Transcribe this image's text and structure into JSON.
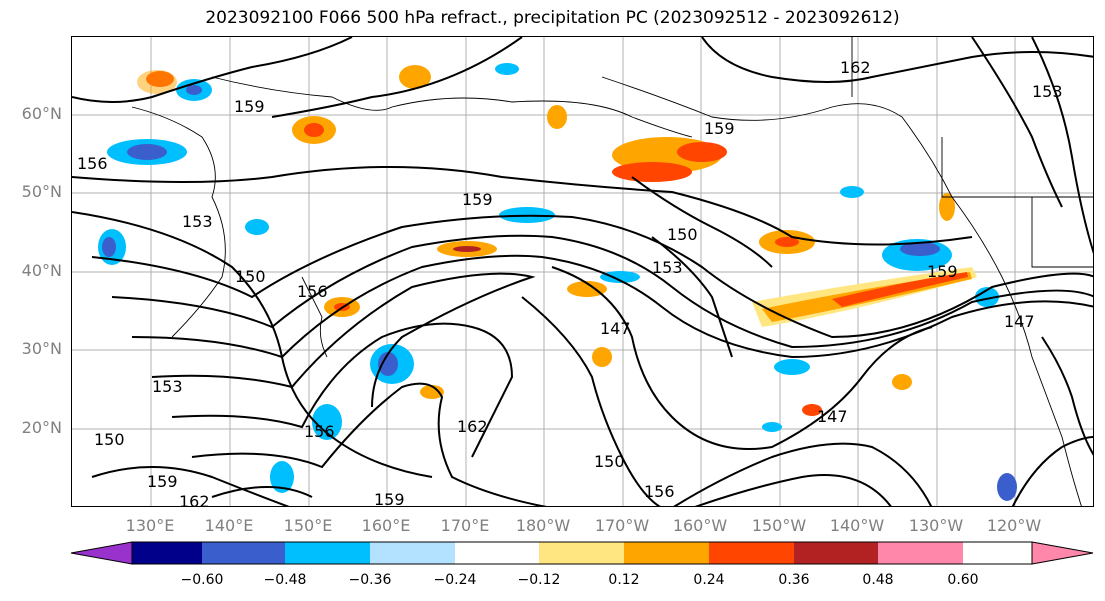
{
  "title": "2023092100 F066 500 hPa refract., precipitation PC (2023092512 - 2023092612)",
  "lat_labels": [
    "60°N",
    "50°N",
    "40°N",
    "30°N",
    "20°N"
  ],
  "lon_labels": [
    "130°E",
    "140°E",
    "150°E",
    "160°E",
    "170°E",
    "180°W",
    "170°W",
    "160°W",
    "150°W",
    "140°W",
    "130°W",
    "120°W"
  ],
  "contour_labels": [
    "162",
    "159",
    "156",
    "153",
    "150",
    "147",
    "159",
    "150",
    "153",
    "156",
    "159",
    "147",
    "150",
    "153",
    "156",
    "159",
    "162",
    "159",
    "162",
    "156",
    "150",
    "159",
    "153",
    "147"
  ],
  "colorbar": {
    "ticks": [
      "−0.60",
      "−0.48",
      "−0.36",
      "−0.24",
      "−0.12",
      "0.12",
      "0.24",
      "0.36",
      "0.48",
      "0.60"
    ],
    "colors": [
      "#9932cc",
      "#00008b",
      "#3a5fcd",
      "#00bfff",
      "#b2e2ff",
      "#ffffff",
      "#ffe680",
      "#ffa500",
      "#ff4500",
      "#b22222",
      "#ff88aa"
    ]
  }
}
